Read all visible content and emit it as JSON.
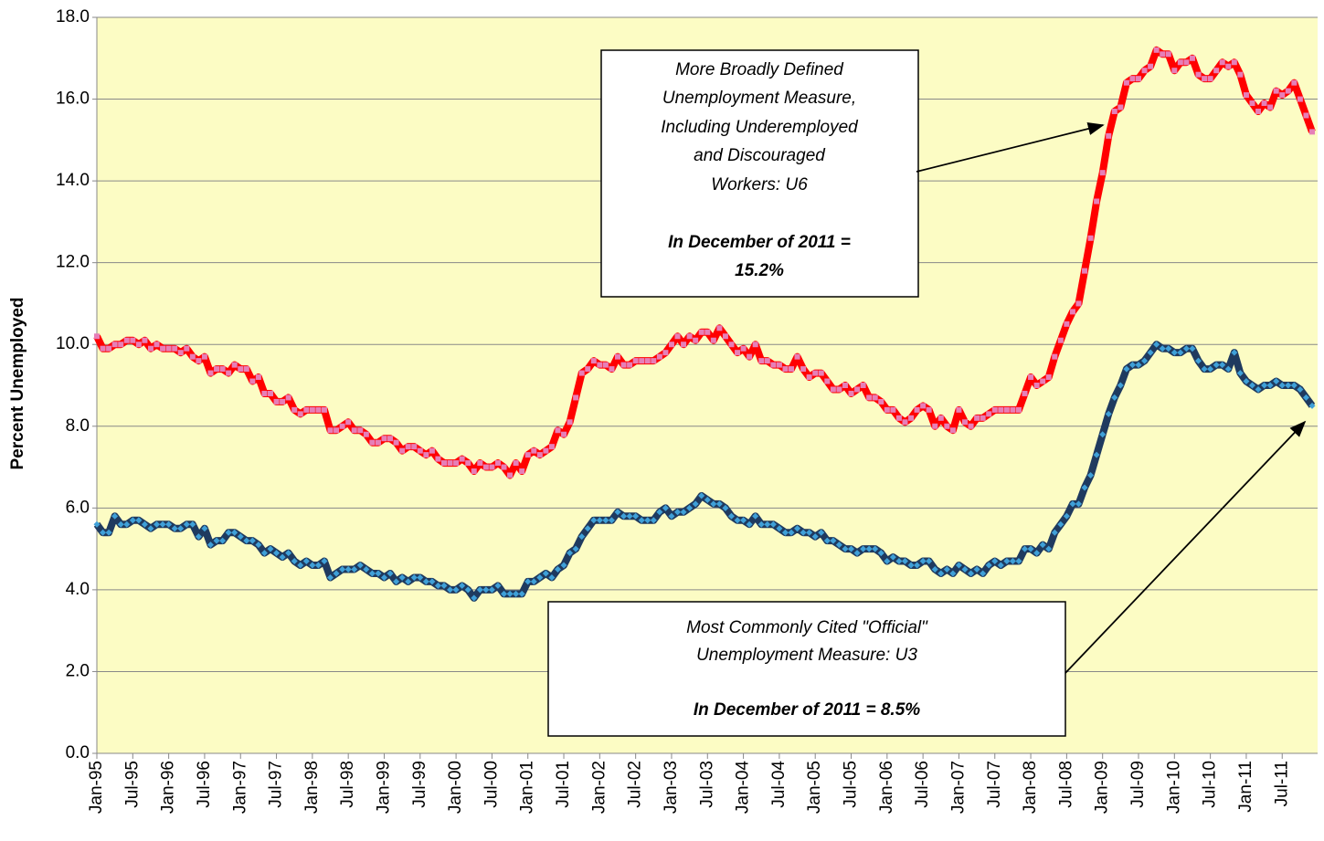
{
  "chart_data": {
    "type": "line",
    "ylabel": "Percent Unemployed",
    "ylim": [
      0,
      18
    ],
    "yticks": [
      {
        "value": 0,
        "label": "0.0"
      },
      {
        "value": 2,
        "label": "2.0"
      },
      {
        "value": 4,
        "label": "4.0"
      },
      {
        "value": 6,
        "label": "6.0"
      },
      {
        "value": 8,
        "label": "8.0"
      },
      {
        "value": 10,
        "label": "10.0"
      },
      {
        "value": 12,
        "label": "12.0"
      },
      {
        "value": 14,
        "label": "14.0"
      },
      {
        "value": 16,
        "label": "16.0"
      },
      {
        "value": 18,
        "label": "18.0"
      }
    ],
    "grid": true,
    "background": "#fcfcc4",
    "categories": [
      "Jan-95",
      null,
      null,
      null,
      null,
      null,
      "Jul-95",
      null,
      null,
      null,
      null,
      null,
      "Jan-96",
      null,
      null,
      null,
      null,
      null,
      "Jul-96",
      null,
      null,
      null,
      null,
      null,
      "Jan-97",
      null,
      null,
      null,
      null,
      null,
      "Jul-97",
      null,
      null,
      null,
      null,
      null,
      "Jan-98",
      null,
      null,
      null,
      null,
      null,
      "Jul-98",
      null,
      null,
      null,
      null,
      null,
      "Jan-99",
      null,
      null,
      null,
      null,
      null,
      "Jul-99",
      null,
      null,
      null,
      null,
      null,
      "Jan-00",
      null,
      null,
      null,
      null,
      null,
      "Jul-00",
      null,
      null,
      null,
      null,
      null,
      "Jan-01",
      null,
      null,
      null,
      null,
      null,
      "Jul-01",
      null,
      null,
      null,
      null,
      null,
      "Jan-02",
      null,
      null,
      null,
      null,
      null,
      "Jul-02",
      null,
      null,
      null,
      null,
      null,
      "Jan-03",
      null,
      null,
      null,
      null,
      null,
      "Jul-03",
      null,
      null,
      null,
      null,
      null,
      "Jan-04",
      null,
      null,
      null,
      null,
      null,
      "Jul-04",
      null,
      null,
      null,
      null,
      null,
      "Jan-05",
      null,
      null,
      null,
      null,
      null,
      "Jul-05",
      null,
      null,
      null,
      null,
      null,
      "Jan-06",
      null,
      null,
      null,
      null,
      null,
      "Jul-06",
      null,
      null,
      null,
      null,
      null,
      "Jan-07",
      null,
      null,
      null,
      null,
      null,
      "Jul-07",
      null,
      null,
      null,
      null,
      null,
      "Jan-08",
      null,
      null,
      null,
      null,
      null,
      "Jul-08",
      null,
      null,
      null,
      null,
      null,
      "Jan-09",
      null,
      null,
      null,
      null,
      null,
      "Jul-09",
      null,
      null,
      null,
      null,
      null,
      "Jan-10",
      null,
      null,
      null,
      null,
      null,
      "Jul-10",
      null,
      null,
      null,
      null,
      null,
      "Jan-11",
      null,
      null,
      null,
      null,
      null,
      "Jul-11",
      null,
      null,
      null,
      null,
      null
    ],
    "series": [
      {
        "color": "#ff0000",
        "marker_color": "#e67fb8",
        "marker": "square",
        "values": [
          10.2,
          9.9,
          9.9,
          10.0,
          10.0,
          10.1,
          10.1,
          10.0,
          10.1,
          9.9,
          10.0,
          9.9,
          9.9,
          9.9,
          9.8,
          9.9,
          9.7,
          9.6,
          9.7,
          9.3,
          9.4,
          9.4,
          9.3,
          9.5,
          9.4,
          9.4,
          9.1,
          9.2,
          8.8,
          8.8,
          8.6,
          8.6,
          8.7,
          8.4,
          8.3,
          8.4,
          8.4,
          8.4,
          8.4,
          7.9,
          7.9,
          8.0,
          8.1,
          7.9,
          7.9,
          7.8,
          7.6,
          7.6,
          7.7,
          7.7,
          7.6,
          7.4,
          7.5,
          7.5,
          7.4,
          7.3,
          7.4,
          7.2,
          7.1,
          7.1,
          7.1,
          7.2,
          7.1,
          6.9,
          7.1,
          7.0,
          7.0,
          7.1,
          7.0,
          6.8,
          7.1,
          6.9,
          7.3,
          7.4,
          7.3,
          7.4,
          7.5,
          7.9,
          7.8,
          8.1,
          8.7,
          9.3,
          9.4,
          9.6,
          9.5,
          9.5,
          9.4,
          9.7,
          9.5,
          9.5,
          9.6,
          9.6,
          9.6,
          9.6,
          9.7,
          9.8,
          10.0,
          10.2,
          10.0,
          10.2,
          10.1,
          10.3,
          10.3,
          10.1,
          10.4,
          10.2,
          10.0,
          9.8,
          9.9,
          9.7,
          10.0,
          9.6,
          9.6,
          9.5,
          9.5,
          9.4,
          9.4,
          9.7,
          9.4,
          9.2,
          9.3,
          9.3,
          9.1,
          8.9,
          8.9,
          9.0,
          8.8,
          8.9,
          9.0,
          8.7,
          8.7,
          8.6,
          8.4,
          8.4,
          8.2,
          8.1,
          8.2,
          8.4,
          8.5,
          8.4,
          8.0,
          8.2,
          8.0,
          7.9,
          8.4,
          8.1,
          8.0,
          8.2,
          8.2,
          8.3,
          8.4,
          8.4,
          8.4,
          8.4,
          8.4,
          8.8,
          9.2,
          9.0,
          9.1,
          9.2,
          9.7,
          10.1,
          10.5,
          10.8,
          11.0,
          11.8,
          12.6,
          13.5,
          14.2,
          15.1,
          15.7,
          15.8,
          16.4,
          16.5,
          16.5,
          16.7,
          16.8,
          17.2,
          17.1,
          17.1,
          16.7,
          16.9,
          16.9,
          17.0,
          16.6,
          16.5,
          16.5,
          16.7,
          16.9,
          16.8,
          16.9,
          16.6,
          16.1,
          15.9,
          15.7,
          15.9,
          15.8,
          16.2,
          16.1,
          16.2,
          16.4,
          16.0,
          15.6,
          15.2
        ]
      },
      {
        "color": "#1f3a5f",
        "marker_color": "#3fa0d8",
        "marker": "diamond",
        "values": [
          5.6,
          5.4,
          5.4,
          5.8,
          5.6,
          5.6,
          5.7,
          5.7,
          5.6,
          5.5,
          5.6,
          5.6,
          5.6,
          5.5,
          5.5,
          5.6,
          5.6,
          5.3,
          5.5,
          5.1,
          5.2,
          5.2,
          5.4,
          5.4,
          5.3,
          5.2,
          5.2,
          5.1,
          4.9,
          5.0,
          4.9,
          4.8,
          4.9,
          4.7,
          4.6,
          4.7,
          4.6,
          4.6,
          4.7,
          4.3,
          4.4,
          4.5,
          4.5,
          4.5,
          4.6,
          4.5,
          4.4,
          4.4,
          4.3,
          4.4,
          4.2,
          4.3,
          4.2,
          4.3,
          4.3,
          4.2,
          4.2,
          4.1,
          4.1,
          4.0,
          4.0,
          4.1,
          4.0,
          3.8,
          4.0,
          4.0,
          4.0,
          4.1,
          3.9,
          3.9,
          3.9,
          3.9,
          4.2,
          4.2,
          4.3,
          4.4,
          4.3,
          4.5,
          4.6,
          4.9,
          5.0,
          5.3,
          5.5,
          5.7,
          5.7,
          5.7,
          5.7,
          5.9,
          5.8,
          5.8,
          5.8,
          5.7,
          5.7,
          5.7,
          5.9,
          6.0,
          5.8,
          5.9,
          5.9,
          6.0,
          6.1,
          6.3,
          6.2,
          6.1,
          6.1,
          6.0,
          5.8,
          5.7,
          5.7,
          5.6,
          5.8,
          5.6,
          5.6,
          5.6,
          5.5,
          5.4,
          5.4,
          5.5,
          5.4,
          5.4,
          5.3,
          5.4,
          5.2,
          5.2,
          5.1,
          5.0,
          5.0,
          4.9,
          5.0,
          5.0,
          5.0,
          4.9,
          4.7,
          4.8,
          4.7,
          4.7,
          4.6,
          4.6,
          4.7,
          4.7,
          4.5,
          4.4,
          4.5,
          4.4,
          4.6,
          4.5,
          4.4,
          4.5,
          4.4,
          4.6,
          4.7,
          4.6,
          4.7,
          4.7,
          4.7,
          5.0,
          5.0,
          4.9,
          5.1,
          5.0,
          5.4,
          5.6,
          5.8,
          6.1,
          6.1,
          6.5,
          6.8,
          7.3,
          7.8,
          8.3,
          8.7,
          9.0,
          9.4,
          9.5,
          9.5,
          9.6,
          9.8,
          10.0,
          9.9,
          9.9,
          9.8,
          9.8,
          9.9,
          9.9,
          9.6,
          9.4,
          9.4,
          9.5,
          9.5,
          9.4,
          9.8,
          9.3,
          9.1,
          9.0,
          8.9,
          9.0,
          9.0,
          9.1,
          9.0,
          9.0,
          9.0,
          8.9,
          8.7,
          8.5
        ]
      }
    ],
    "annotations": [
      {
        "lines": [
          "More Broadly Defined",
          "Unemployment Measure,",
          "Including Underemployed",
          "and Discouraged",
          "Workers:  U6"
        ],
        "bold_lines": [
          "In December of 2011 =",
          "15.2%"
        ]
      },
      {
        "lines": [
          "Most Commonly Cited \"Official\"",
          "Unemployment Measure:  U3"
        ],
        "bold_lines": [
          "In December of 2011 = 8.5%"
        ]
      }
    ]
  }
}
